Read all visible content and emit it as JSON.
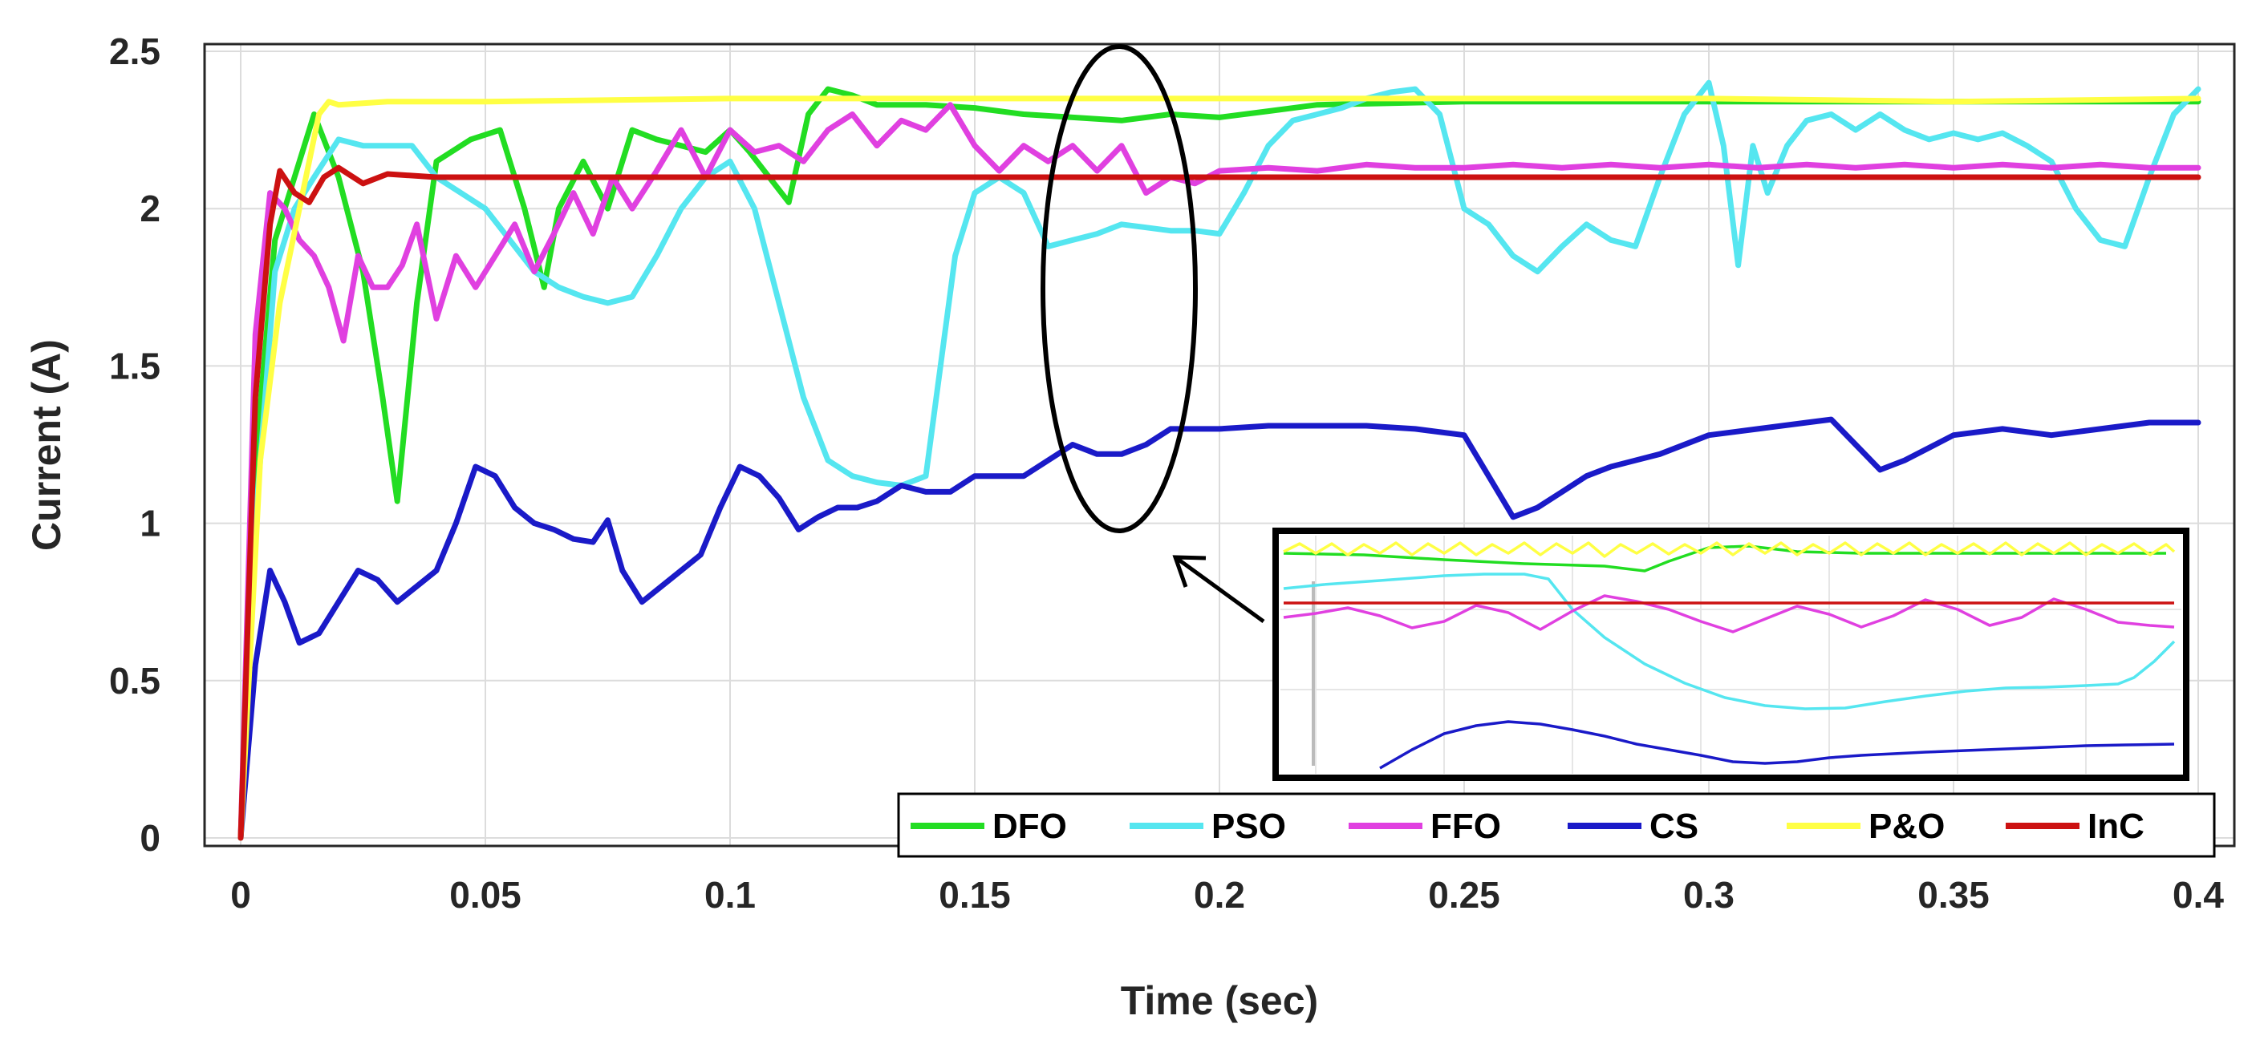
{
  "chart_data": {
    "type": "line",
    "title": "",
    "xlabel": "Time (sec)",
    "ylabel": "Current (A)",
    "xlim": [
      0,
      0.4
    ],
    "ylim": [
      0,
      2.5
    ],
    "xticks": [
      0,
      0.05,
      0.1,
      0.15,
      0.2,
      0.25,
      0.3,
      0.35,
      0.4
    ],
    "yticks": [
      0,
      0.5,
      1,
      1.5,
      2,
      2.5
    ],
    "xtick_labels": [
      "0",
      "0.05",
      "0.1",
      "0.15",
      "0.2",
      "0.25",
      "0.3",
      "0.35",
      "0.4"
    ],
    "ytick_labels": [
      "0",
      "0.5",
      "1",
      "1.5",
      "2",
      "2.5"
    ],
    "grid": true,
    "legend_position": "bottom-right",
    "series": [
      {
        "name": "DFO",
        "color": "#22dd22",
        "x": [
          0,
          0.003,
          0.007,
          0.011,
          0.015,
          0.02,
          0.025,
          0.029,
          0.032,
          0.036,
          0.04,
          0.047,
          0.053,
          0.058,
          0.062,
          0.065,
          0.07,
          0.075,
          0.08,
          0.085,
          0.09,
          0.095,
          0.1,
          0.104,
          0.108,
          0.112,
          0.116,
          0.12,
          0.125,
          0.13,
          0.14,
          0.15,
          0.16,
          0.17,
          0.18,
          0.19,
          0.2,
          0.21,
          0.22,
          0.25,
          0.3,
          0.35,
          0.4
        ],
        "y": [
          0,
          1.2,
          1.9,
          2.1,
          2.3,
          2.1,
          1.8,
          1.4,
          1.07,
          1.7,
          2.15,
          2.22,
          2.25,
          2.0,
          1.75,
          2.0,
          2.15,
          2.0,
          2.25,
          2.22,
          2.2,
          2.18,
          2.25,
          2.18,
          2.1,
          2.02,
          2.3,
          2.38,
          2.36,
          2.33,
          2.33,
          2.32,
          2.3,
          2.29,
          2.28,
          2.3,
          2.29,
          2.31,
          2.33,
          2.34,
          2.34,
          2.34,
          2.34
        ]
      },
      {
        "name": "PSO",
        "color": "#55e6f0",
        "x": [
          0,
          0.003,
          0.007,
          0.011,
          0.015,
          0.02,
          0.025,
          0.03,
          0.035,
          0.04,
          0.045,
          0.05,
          0.055,
          0.06,
          0.065,
          0.07,
          0.075,
          0.08,
          0.085,
          0.09,
          0.095,
          0.1,
          0.105,
          0.11,
          0.115,
          0.12,
          0.125,
          0.13,
          0.135,
          0.14,
          0.143,
          0.146,
          0.15,
          0.155,
          0.16,
          0.165,
          0.17,
          0.175,
          0.18,
          0.185,
          0.19,
          0.195,
          0.2,
          0.205,
          0.21,
          0.215,
          0.22,
          0.225,
          0.23,
          0.235,
          0.24,
          0.245,
          0.25,
          0.255,
          0.26,
          0.265,
          0.27,
          0.275,
          0.28,
          0.285,
          0.29,
          0.295,
          0.3,
          0.303,
          0.306,
          0.309,
          0.312,
          0.316,
          0.32,
          0.325,
          0.33,
          0.335,
          0.34,
          0.345,
          0.35,
          0.355,
          0.36,
          0.365,
          0.37,
          0.375,
          0.38,
          0.385,
          0.39,
          0.395,
          0.4
        ],
        "y": [
          0,
          1.0,
          1.8,
          2.0,
          2.1,
          2.22,
          2.2,
          2.2,
          2.2,
          2.1,
          2.05,
          2.0,
          1.9,
          1.8,
          1.75,
          1.72,
          1.7,
          1.72,
          1.85,
          2.0,
          2.1,
          2.15,
          2.0,
          1.7,
          1.4,
          1.2,
          1.15,
          1.13,
          1.12,
          1.15,
          1.5,
          1.85,
          2.05,
          2.1,
          2.05,
          1.88,
          1.9,
          1.92,
          1.95,
          1.94,
          1.93,
          1.93,
          1.92,
          2.05,
          2.2,
          2.28,
          2.3,
          2.32,
          2.35,
          2.37,
          2.38,
          2.3,
          2.0,
          1.95,
          1.85,
          1.8,
          1.88,
          1.95,
          1.9,
          1.88,
          2.1,
          2.3,
          2.4,
          2.2,
          1.82,
          2.2,
          2.05,
          2.2,
          2.28,
          2.3,
          2.25,
          2.3,
          2.25,
          2.22,
          2.24,
          2.22,
          2.24,
          2.2,
          2.15,
          2.0,
          1.9,
          1.88,
          2.1,
          2.3,
          2.38
        ]
      },
      {
        "name": "FFO",
        "color": "#e040e0",
        "x": [
          0,
          0.003,
          0.006,
          0.009,
          0.012,
          0.015,
          0.018,
          0.021,
          0.024,
          0.027,
          0.03,
          0.033,
          0.036,
          0.04,
          0.044,
          0.048,
          0.052,
          0.056,
          0.06,
          0.064,
          0.068,
          0.072,
          0.076,
          0.08,
          0.085,
          0.09,
          0.095,
          0.1,
          0.105,
          0.11,
          0.115,
          0.12,
          0.125,
          0.13,
          0.135,
          0.14,
          0.145,
          0.15,
          0.155,
          0.16,
          0.165,
          0.17,
          0.175,
          0.18,
          0.185,
          0.19,
          0.195,
          0.2,
          0.21,
          0.22,
          0.23,
          0.24,
          0.25,
          0.26,
          0.27,
          0.28,
          0.29,
          0.3,
          0.31,
          0.32,
          0.33,
          0.34,
          0.35,
          0.36,
          0.37,
          0.38,
          0.39,
          0.4
        ],
        "y": [
          0,
          1.6,
          2.05,
          2.0,
          1.9,
          1.85,
          1.75,
          1.58,
          1.85,
          1.75,
          1.75,
          1.82,
          1.95,
          1.65,
          1.85,
          1.75,
          1.85,
          1.95,
          1.8,
          1.92,
          2.05,
          1.92,
          2.1,
          2.0,
          2.12,
          2.25,
          2.1,
          2.25,
          2.18,
          2.2,
          2.15,
          2.25,
          2.3,
          2.2,
          2.28,
          2.25,
          2.33,
          2.2,
          2.12,
          2.2,
          2.15,
          2.2,
          2.12,
          2.2,
          2.05,
          2.1,
          2.08,
          2.12,
          2.13,
          2.12,
          2.14,
          2.13,
          2.13,
          2.14,
          2.13,
          2.14,
          2.13,
          2.14,
          2.13,
          2.14,
          2.13,
          2.14,
          2.13,
          2.14,
          2.13,
          2.14,
          2.13,
          2.13
        ]
      },
      {
        "name": "CS",
        "color": "#1a1ac8",
        "x": [
          0,
          0.003,
          0.006,
          0.009,
          0.012,
          0.016,
          0.02,
          0.024,
          0.028,
          0.032,
          0.036,
          0.04,
          0.044,
          0.048,
          0.052,
          0.056,
          0.06,
          0.064,
          0.068,
          0.072,
          0.075,
          0.078,
          0.082,
          0.086,
          0.09,
          0.094,
          0.098,
          0.102,
          0.106,
          0.11,
          0.114,
          0.118,
          0.122,
          0.126,
          0.13,
          0.135,
          0.14,
          0.145,
          0.15,
          0.155,
          0.16,
          0.165,
          0.17,
          0.175,
          0.18,
          0.185,
          0.19,
          0.195,
          0.2,
          0.21,
          0.22,
          0.23,
          0.24,
          0.25,
          0.255,
          0.26,
          0.265,
          0.27,
          0.275,
          0.28,
          0.29,
          0.3,
          0.31,
          0.32,
          0.325,
          0.33,
          0.335,
          0.34,
          0.35,
          0.36,
          0.37,
          0.38,
          0.39,
          0.4
        ],
        "y": [
          0,
          0.55,
          0.85,
          0.75,
          0.62,
          0.65,
          0.75,
          0.85,
          0.82,
          0.75,
          0.8,
          0.85,
          1.0,
          1.18,
          1.15,
          1.05,
          1.0,
          0.98,
          0.95,
          0.94,
          1.01,
          0.85,
          0.75,
          0.8,
          0.85,
          0.9,
          1.05,
          1.18,
          1.15,
          1.08,
          0.98,
          1.02,
          1.05,
          1.05,
          1.07,
          1.12,
          1.1,
          1.1,
          1.15,
          1.15,
          1.15,
          1.2,
          1.25,
          1.22,
          1.22,
          1.25,
          1.3,
          1.3,
          1.3,
          1.31,
          1.31,
          1.31,
          1.3,
          1.28,
          1.15,
          1.02,
          1.05,
          1.1,
          1.15,
          1.18,
          1.22,
          1.28,
          1.3,
          1.32,
          1.33,
          1.25,
          1.17,
          1.2,
          1.28,
          1.3,
          1.28,
          1.3,
          1.32,
          1.32
        ]
      },
      {
        "name": "P&O",
        "color": "#ffff44",
        "x": [
          0,
          0.004,
          0.008,
          0.012,
          0.016,
          0.018,
          0.02,
          0.03,
          0.05,
          0.1,
          0.15,
          0.2,
          0.25,
          0.3,
          0.35,
          0.4
        ],
        "y": [
          0,
          1.2,
          1.7,
          2.0,
          2.3,
          2.34,
          2.33,
          2.34,
          2.34,
          2.35,
          2.35,
          2.35,
          2.35,
          2.35,
          2.34,
          2.35
        ]
      },
      {
        "name": "InC",
        "color": "#cc1111",
        "x": [
          0,
          0.003,
          0.006,
          0.008,
          0.011,
          0.014,
          0.017,
          0.02,
          0.025,
          0.03,
          0.04,
          0.1,
          0.2,
          0.3,
          0.4
        ],
        "y": [
          0,
          1.4,
          1.95,
          2.12,
          2.05,
          2.02,
          2.1,
          2.13,
          2.08,
          2.11,
          2.1,
          2.1,
          2.1,
          2.1,
          2.1
        ]
      }
    ],
    "annotations": [
      "inset zoom of the region near t = 0.18 s (ellipse marks the zoomed area)"
    ]
  }
}
